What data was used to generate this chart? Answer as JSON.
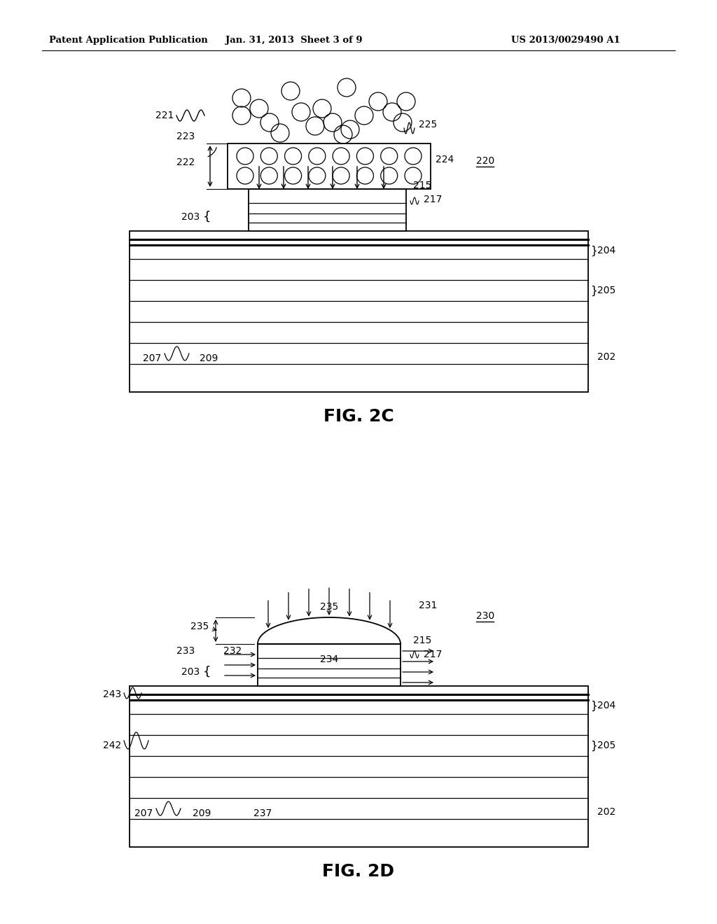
{
  "header_left": "Patent Application Publication",
  "header_mid": "Jan. 31, 2013  Sheet 3 of 9",
  "header_right": "US 2013/0029490 A1",
  "fig2c_label": "FIG. 2C",
  "fig2d_label": "FIG. 2D",
  "bg_color": "#ffffff",
  "line_color": "#000000"
}
